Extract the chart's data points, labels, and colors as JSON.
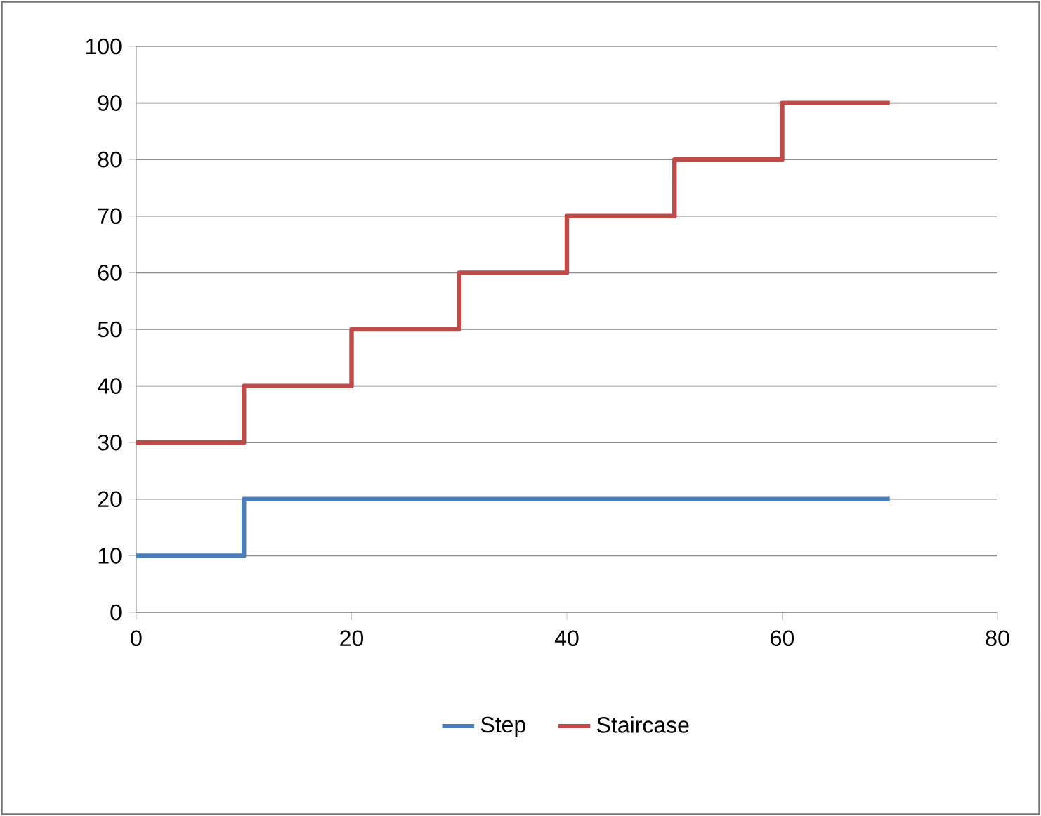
{
  "chart_data": {
    "type": "step",
    "x": [
      0,
      10,
      20,
      30,
      40,
      50,
      60,
      70
    ],
    "series": [
      {
        "name": "Step",
        "color": "#4a7ebb",
        "values": [
          10,
          20,
          20,
          20,
          20,
          20,
          20,
          20
        ]
      },
      {
        "name": "Staircase",
        "color": "#be4b48",
        "values": [
          30,
          40,
          50,
          60,
          70,
          80,
          90,
          90
        ]
      }
    ],
    "xlim": [
      0,
      80
    ],
    "xticks": [
      0,
      20,
      40,
      60,
      80
    ],
    "ylim": [
      0,
      100
    ],
    "yticks": [
      0,
      10,
      20,
      30,
      40,
      50,
      60,
      70,
      80,
      90,
      100
    ],
    "grid": "y",
    "legend": "bottom",
    "marker": "none",
    "line_style": "solid"
  }
}
